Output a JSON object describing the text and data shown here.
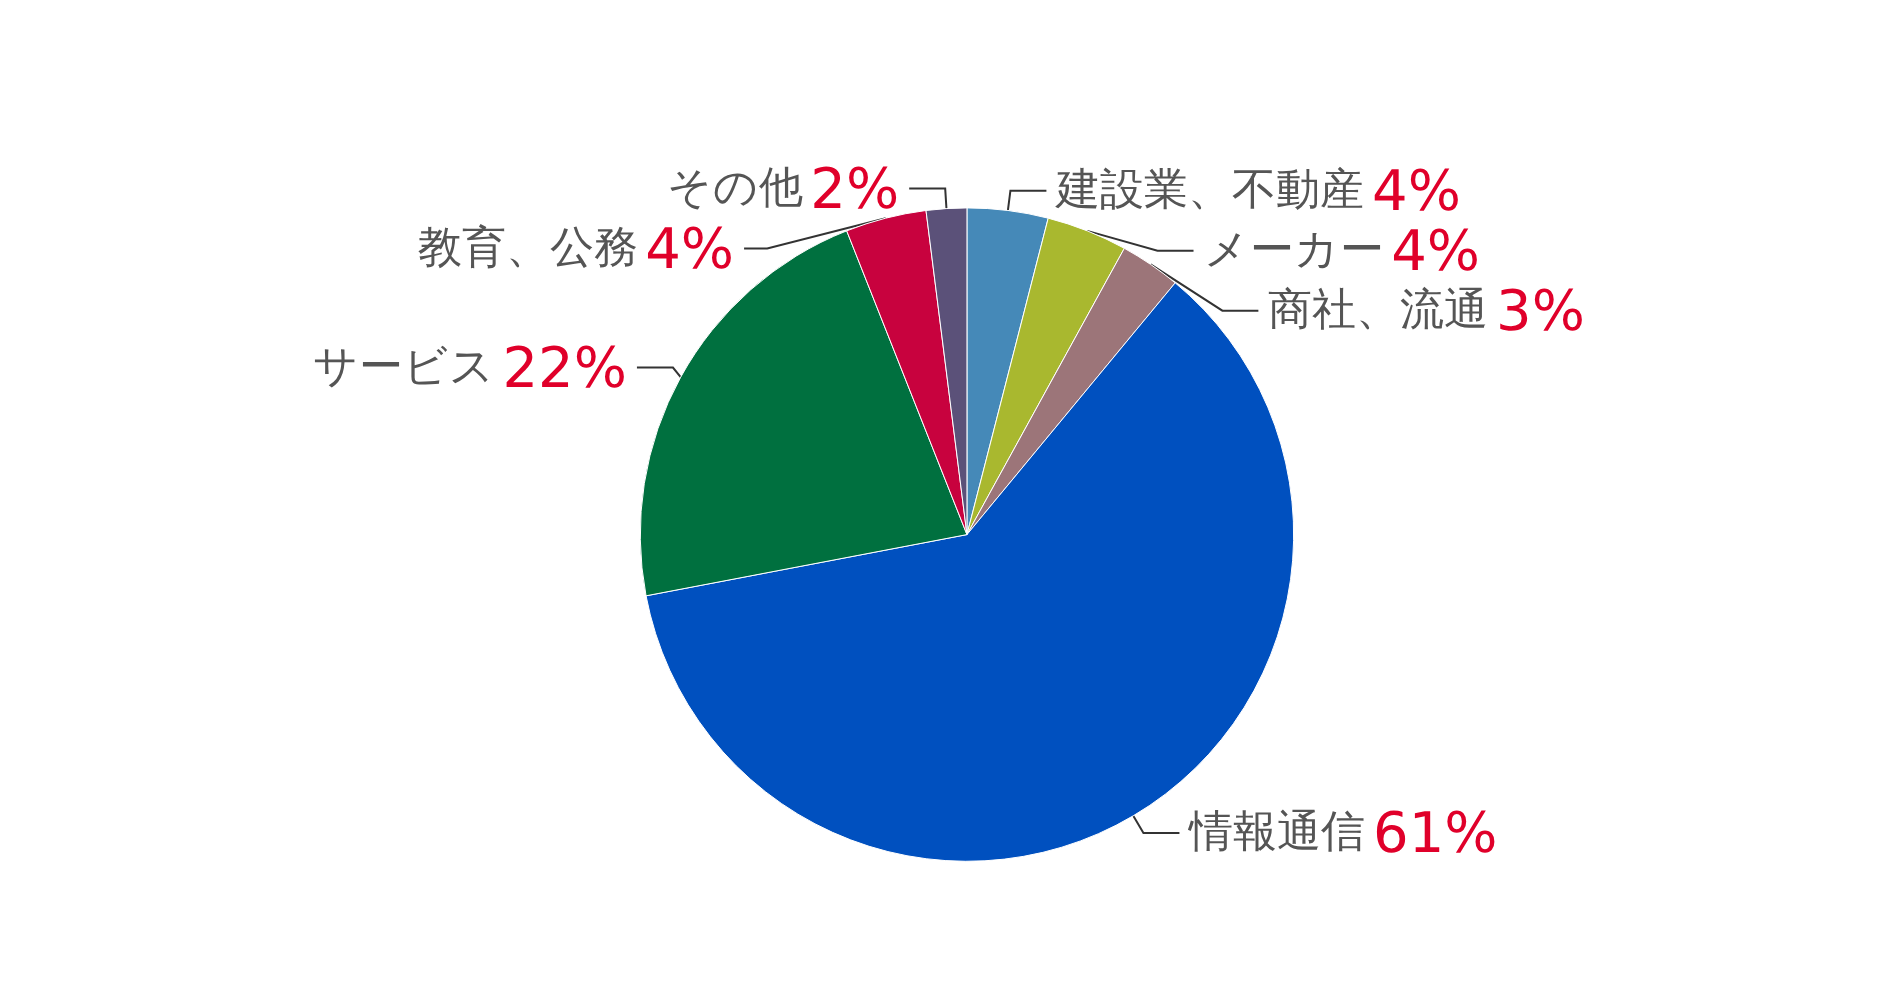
{
  "chart_data": {
    "type": "pie",
    "categories": [
      "建設業、不動産",
      "メーカー",
      "商社、流通",
      "情報通信",
      "サービス",
      "教育、公務",
      "その他"
    ],
    "values": [
      4,
      4,
      3,
      61,
      22,
      4,
      2
    ],
    "colors": [
      "#4589b8",
      "#a9b82f",
      "#9c7579",
      "#0050bf",
      "#00703f",
      "#c8023e",
      "#5b5179"
    ],
    "value_labels": [
      "4%",
      "4%",
      "3%",
      "61%",
      "22%",
      "4%",
      "2%"
    ]
  }
}
